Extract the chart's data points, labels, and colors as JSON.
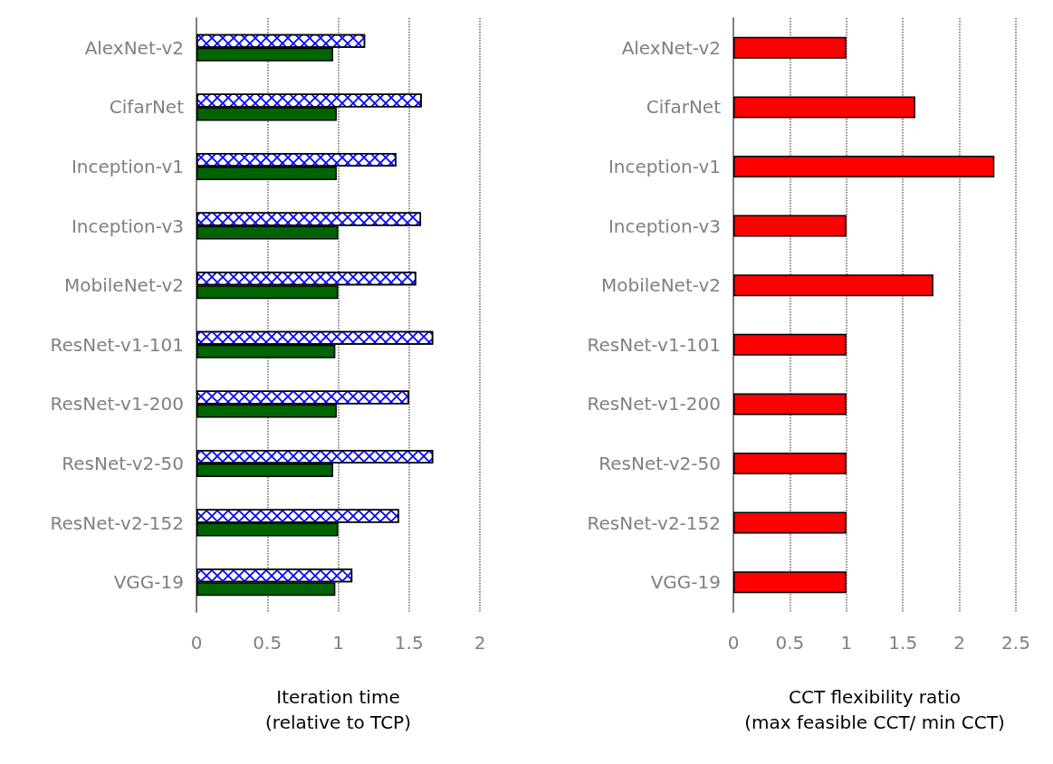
{
  "chart_data": [
    {
      "type": "bar",
      "orientation": "horizontal",
      "xlabel": "Iteration time\n(relative to TCP)",
      "categories": [
        "AlexNet-v2",
        "CifarNet",
        "Inception-v1",
        "Inception-v3",
        "MobileNet-v2",
        "ResNet-v1-101",
        "ResNet-v1-200",
        "ResNet-v2-50",
        "ResNet-v2-152",
        "VGG-19"
      ],
      "series": [
        {
          "color": "#ffffff",
          "values": [
            1.19,
            1.59,
            1.41,
            1.585,
            1.55,
            1.67,
            1.5,
            1.67,
            1.43,
            1.1
          ]
        },
        {
          "color": "#006400",
          "values": [
            0.965,
            0.99,
            0.99,
            1.0,
            1.0,
            0.98,
            0.99,
            0.965,
            1.0,
            0.98
          ]
        }
      ],
      "xlim": [
        0,
        2
      ],
      "xticks": [
        0,
        0.5,
        1,
        1.5,
        2
      ],
      "grid": "x"
    },
    {
      "type": "bar",
      "orientation": "horizontal",
      "xlabel": "CCT flexibility ratio\n(max feasible CCT/ min CCT)",
      "categories": [
        "AlexNet-v2",
        "CifarNet",
        "Inception-v1",
        "Inception-v3",
        "MobileNet-v2",
        "ResNet-v1-101",
        "ResNet-v1-200",
        "ResNet-v2-50",
        "ResNet-v2-152",
        "VGG-19"
      ],
      "series": [
        {
          "color": "#ff0000",
          "values": [
            1.0,
            1.61,
            2.31,
            1.0,
            1.77,
            1.0,
            1.0,
            1.0,
            1.0,
            1.0
          ]
        }
      ],
      "xlim": [
        0,
        2.5
      ],
      "xticks": [
        0,
        0.5,
        1,
        1.5,
        2,
        2.5
      ],
      "grid": "x"
    }
  ]
}
